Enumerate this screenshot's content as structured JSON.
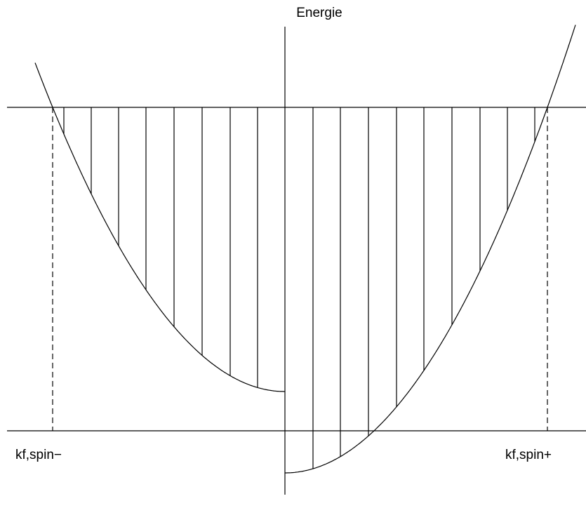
{
  "axis_label": "Energie",
  "left_label": "kf,spin−",
  "right_label": "kf,spin+"
}
